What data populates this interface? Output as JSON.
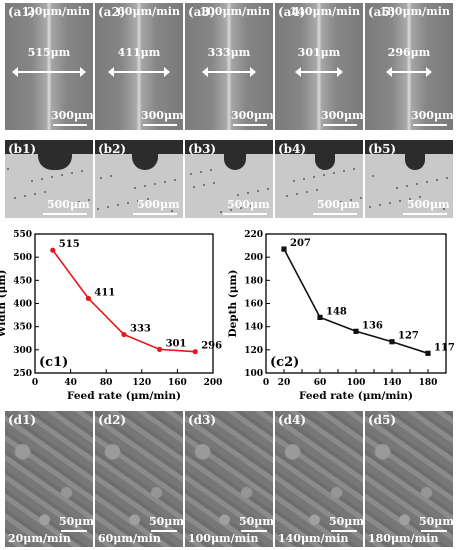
{
  "row_a": [
    {
      "label": "(a1)",
      "rate": "20μm/min",
      "measure": "515μm",
      "scale": "300μm"
    },
    {
      "label": "(a2)",
      "rate": "60μm/min",
      "measure": "411μm",
      "scale": "300μm"
    },
    {
      "label": "(a3)",
      "rate": "100μm/min",
      "measure": "333μm",
      "scale": "300μm"
    },
    {
      "label": "(a4)",
      "rate": "140μm/min",
      "measure": "301μm",
      "scale": "300μm"
    },
    {
      "label": "(a5)",
      "rate": "180μm/min",
      "measure": "296μm",
      "scale": "300μm"
    }
  ],
  "row_b": [
    {
      "label": "(b1)",
      "scale": "500μm"
    },
    {
      "label": "(b2)",
      "scale": "500μm"
    },
    {
      "label": "(b3)",
      "scale": "500μm"
    },
    {
      "label": "(b4)",
      "scale": "500μm"
    },
    {
      "label": "(b5)",
      "scale": "500μm"
    }
  ],
  "row_d": [
    {
      "label": "(d1)",
      "rate": "20μm/min",
      "scale": "50μm"
    },
    {
      "label": "(d2)",
      "rate": "60μm/min",
      "scale": "50μm"
    },
    {
      "label": "(d3)",
      "rate": "100μm/min",
      "scale": "50μm"
    },
    {
      "label": "(d4)",
      "rate": "140μm/min",
      "scale": "50μm"
    },
    {
      "label": "(d5)",
      "rate": "180μm/min",
      "scale": "50μm"
    }
  ],
  "chart_data": [
    {
      "type": "line",
      "panel_label": "(c1)",
      "xlabel": "Feed rate (μm/min)",
      "ylabel": "Width (μm)",
      "x": [
        20,
        60,
        100,
        140,
        180
      ],
      "values": [
        515,
        411,
        333,
        301,
        296
      ],
      "point_labels": [
        "515",
        "411",
        "333",
        "301",
        "296"
      ],
      "xlim": [
        0,
        200
      ],
      "ylim": [
        250,
        550
      ],
      "xticks": [
        0,
        40,
        80,
        120,
        160,
        200
      ],
      "yticks": [
        250,
        300,
        350,
        400,
        450,
        500,
        550
      ],
      "color": "#e8161b",
      "marker": "circle"
    },
    {
      "type": "line",
      "panel_label": "(c2)",
      "xlabel": "Feed rate (μm/min)",
      "ylabel": "Depth (μm)",
      "x": [
        20,
        60,
        100,
        140,
        180
      ],
      "values": [
        207,
        148,
        136,
        127,
        117
      ],
      "point_labels": [
        "207",
        "148",
        "136",
        "127",
        "117"
      ],
      "xlim": [
        0,
        200
      ],
      "ylim": [
        100,
        220
      ],
      "xticks": [
        0,
        20,
        40,
        60,
        80,
        100,
        120,
        140,
        160,
        180,
        200
      ],
      "yticks": [
        100,
        120,
        140,
        160,
        180,
        200,
        220
      ],
      "xticklabels_shown": [
        0,
        20,
        60,
        100,
        140,
        180
      ],
      "color": "#111111",
      "marker": "square"
    }
  ]
}
